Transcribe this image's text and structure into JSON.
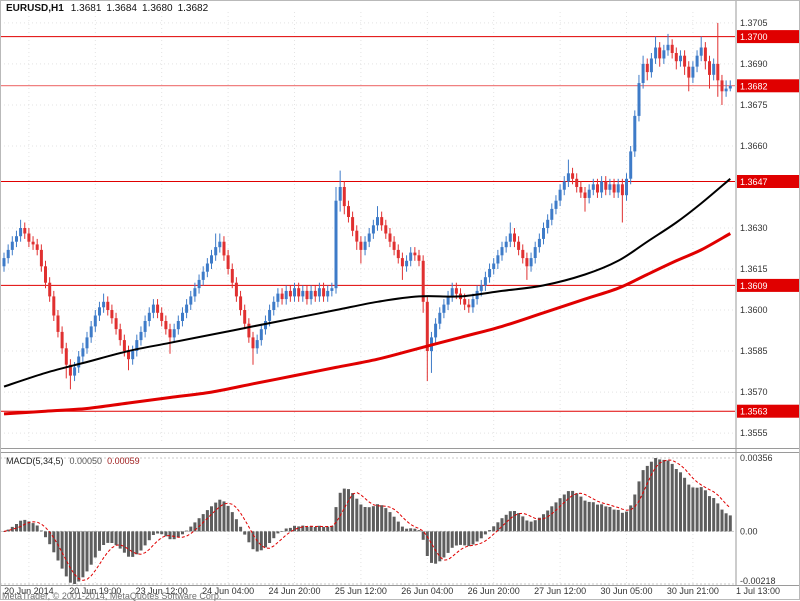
{
  "header": {
    "symbol_period": "EURUSD,H1",
    "open": "1.3681",
    "high": "1.3684",
    "low": "1.3680",
    "close": "1.3682"
  },
  "footer": {
    "copyright": "MetaTrader, © 2001-2014, MetaQuotes Software Corp."
  },
  "macd_panel": {
    "label": "MACD(5,34,5)",
    "value_main": "0.00050",
    "value_signal": "0.00059",
    "axis_max": "0.00356",
    "axis_zero": "0.00",
    "axis_min": "-0.00218"
  },
  "price_axis": {
    "ticks": [
      "1.3705",
      "1.3690",
      "1.3675",
      "1.3660",
      "1.3630",
      "1.3615",
      "1.3600",
      "1.3585",
      "1.3570",
      "1.3555"
    ],
    "levels": [
      "1.3700",
      "1.3647",
      "1.3609",
      "1.3563"
    ],
    "bid": "1.3682"
  },
  "time_axis": {
    "labels": [
      "20 Jun 2014",
      "20 Jun 19:00",
      "23 Jun 12:00",
      "24 Jun 04:00",
      "24 Jun 20:00",
      "25 Jun 12:00",
      "26 Jun 04:00",
      "26 Jun 20:00",
      "27 Jun 12:00",
      "30 Jun 05:00",
      "30 Jun 21:00",
      "1 Jul 13:00"
    ]
  },
  "colors": {
    "candle_up": "#3E7BC8",
    "candle_down": "#E03030",
    "ma_black": "#000000",
    "ma_red": "#E00000",
    "level_line": "#E00000",
    "label_box_bg": "#E00000",
    "label_box_text": "#FFFFFF",
    "macd_hist": "#5E5E5E",
    "macd_signal": "#E00000",
    "grid": "#E3E3E3",
    "frame": "#9A9A9A",
    "axis_text": "#333333"
  },
  "chart_data": {
    "type": "candlestick",
    "title": "EURUSD H1 with MACD(5,34,5)",
    "symbol": "EURUSD",
    "timeframe": "H1",
    "last_ohlc": [
      1.3681,
      1.3684,
      1.368,
      1.3682
    ],
    "price_axis_range": [
      1.3555,
      1.3705
    ],
    "horizontal_levels": [
      1.37,
      1.3647,
      1.3609,
      1.3563
    ],
    "current_bid": 1.3682,
    "x_label_candle_indices": [
      6,
      22,
      38,
      54,
      70,
      86,
      102,
      118,
      134,
      150,
      166,
      182
    ],
    "candles_ohlc_x10000": [
      [
        13616,
        13621,
        13614,
        13619
      ],
      [
        13619,
        13624,
        13617,
        13622
      ],
      [
        13622,
        13627,
        13620,
        13625
      ],
      [
        13625,
        13629,
        13623,
        13627
      ],
      [
        13627,
        13633,
        13625,
        13630
      ],
      [
        13630,
        13632,
        13626,
        13628
      ],
      [
        13628,
        13630,
        13623,
        13625
      ],
      [
        13625,
        13627,
        13622,
        13624
      ],
      [
        13624,
        13626,
        13620,
        13622
      ],
      [
        13622,
        13624,
        13614,
        13616
      ],
      [
        13616,
        13618,
        13608,
        13610
      ],
      [
        13610,
        13612,
        13603,
        13605
      ],
      [
        13605,
        13607,
        13596,
        13598
      ],
      [
        13598,
        13600,
        13590,
        13592
      ],
      [
        13592,
        13594,
        13584,
        13586
      ],
      [
        13586,
        13588,
        13575,
        13580
      ],
      [
        13580,
        13582,
        13571,
        13576
      ],
      [
        13576,
        13581,
        13574,
        13579
      ],
      [
        13579,
        13585,
        13577,
        13583
      ],
      [
        13583,
        13588,
        13581,
        13586
      ],
      [
        13586,
        13592,
        13584,
        13590
      ],
      [
        13590,
        13596,
        13588,
        13594
      ],
      [
        13594,
        13600,
        13592,
        13598
      ],
      [
        13598,
        13603,
        13596,
        13601
      ],
      [
        13601,
        13606,
        13599,
        13603
      ],
      [
        13603,
        13605,
        13598,
        13600
      ],
      [
        13600,
        13602,
        13595,
        13597
      ],
      [
        13597,
        13599,
        13591,
        13593
      ],
      [
        13593,
        13595,
        13587,
        13589
      ],
      [
        13589,
        13591,
        13583,
        13585
      ],
      [
        13585,
        13587,
        13578,
        13582
      ],
      [
        13582,
        13587,
        13580,
        13585
      ],
      [
        13585,
        13591,
        13583,
        13589
      ],
      [
        13589,
        13594,
        13587,
        13592
      ],
      [
        13592,
        13598,
        13590,
        13596
      ],
      [
        13596,
        13601,
        13594,
        13599
      ],
      [
        13599,
        13604,
        13597,
        13602
      ],
      [
        13602,
        13604,
        13597,
        13599
      ],
      [
        13599,
        13601,
        13594,
        13596
      ],
      [
        13596,
        13598,
        13591,
        13593
      ],
      [
        13593,
        13595,
        13584,
        13590
      ],
      [
        13590,
        13595,
        13588,
        13593
      ],
      [
        13593,
        13598,
        13591,
        13596
      ],
      [
        13596,
        13601,
        13594,
        13599
      ],
      [
        13599,
        13604,
        13597,
        13602
      ],
      [
        13602,
        13607,
        13600,
        13605
      ],
      [
        13605,
        13610,
        13603,
        13608
      ],
      [
        13608,
        13613,
        13606,
        13611
      ],
      [
        13611,
        13616,
        13609,
        13614
      ],
      [
        13614,
        13619,
        13612,
        13617
      ],
      [
        13617,
        13622,
        13615,
        13620
      ],
      [
        13620,
        13628,
        13618,
        13623
      ],
      [
        13623,
        13628,
        13621,
        13625
      ],
      [
        13625,
        13627,
        13618,
        13620
      ],
      [
        13620,
        13622,
        13613,
        13615
      ],
      [
        13615,
        13617,
        13608,
        13610
      ],
      [
        13610,
        13612,
        13603,
        13605
      ],
      [
        13605,
        13607,
        13598,
        13600
      ],
      [
        13600,
        13602,
        13593,
        13595
      ],
      [
        13595,
        13597,
        13588,
        13590
      ],
      [
        13590,
        13592,
        13580,
        13586
      ],
      [
        13586,
        13591,
        13584,
        13589
      ],
      [
        13589,
        13595,
        13587,
        13593
      ],
      [
        13593,
        13598,
        13591,
        13596
      ],
      [
        13596,
        13602,
        13594,
        13600
      ],
      [
        13600,
        13605,
        13598,
        13603
      ],
      [
        13603,
        13608,
        13601,
        13606
      ],
      [
        13606,
        13608,
        13602,
        13604
      ],
      [
        13604,
        13609,
        13602,
        13607
      ],
      [
        13607,
        13609,
        13603,
        13605
      ],
      [
        13605,
        13610,
        13603,
        13608
      ],
      [
        13608,
        13610,
        13603,
        13605
      ],
      [
        13605,
        13609,
        13603,
        13607
      ],
      [
        13607,
        13609,
        13602,
        13604
      ],
      [
        13604,
        13609,
        13602,
        13607
      ],
      [
        13607,
        13609,
        13603,
        13605
      ],
      [
        13605,
        13610,
        13603,
        13608
      ],
      [
        13608,
        13610,
        13603,
        13605
      ],
      [
        13605,
        13609,
        13603,
        13607
      ],
      [
        13607,
        13610,
        13605,
        13608
      ],
      [
        13608,
        13645,
        13606,
        13640
      ],
      [
        13640,
        13651,
        13636,
        13645
      ],
      [
        13645,
        13647,
        13635,
        13638
      ],
      [
        13638,
        13640,
        13632,
        13634
      ],
      [
        13634,
        13636,
        13627,
        13629
      ],
      [
        13629,
        13631,
        13622,
        13625
      ],
      [
        13625,
        13627,
        13617,
        13622
      ],
      [
        13622,
        13627,
        13620,
        13625
      ],
      [
        13625,
        13630,
        13623,
        13628
      ],
      [
        13628,
        13633,
        13626,
        13631
      ],
      [
        13631,
        13638,
        13629,
        13634
      ],
      [
        13634,
        13636,
        13629,
        13631
      ],
      [
        13631,
        13633,
        13626,
        13628
      ],
      [
        13628,
        13630,
        13623,
        13625
      ],
      [
        13625,
        13627,
        13620,
        13622
      ],
      [
        13622,
        13624,
        13617,
        13619
      ],
      [
        13619,
        13621,
        13611,
        13616
      ],
      [
        13616,
        13620,
        13614,
        13618
      ],
      [
        13618,
        13623,
        13616,
        13621
      ],
      [
        13621,
        13623,
        13618,
        13620
      ],
      [
        13620,
        13622,
        13616,
        13618
      ],
      [
        13618,
        13620,
        13599,
        13603
      ],
      [
        13603,
        13605,
        13574,
        13585
      ],
      [
        13585,
        13592,
        13577,
        13590
      ],
      [
        13590,
        13597,
        13588,
        13595
      ],
      [
        13595,
        13601,
        13593,
        13599
      ],
      [
        13599,
        13604,
        13597,
        13602
      ],
      [
        13602,
        13607,
        13600,
        13605
      ],
      [
        13605,
        13610,
        13603,
        13608
      ],
      [
        13608,
        13610,
        13604,
        13606
      ],
      [
        13606,
        13608,
        13602,
        13604
      ],
      [
        13604,
        13606,
        13600,
        13602
      ],
      [
        13602,
        13604,
        13599,
        13601
      ],
      [
        13601,
        13606,
        13599,
        13604
      ],
      [
        13604,
        13609,
        13602,
        13607
      ],
      [
        13607,
        13611,
        13605,
        13609
      ],
      [
        13609,
        13614,
        13607,
        13612
      ],
      [
        13612,
        13617,
        13610,
        13615
      ],
      [
        13615,
        13619,
        13613,
        13617
      ],
      [
        13617,
        13622,
        13615,
        13620
      ],
      [
        13620,
        13625,
        13618,
        13623
      ],
      [
        13623,
        13627,
        13621,
        13625
      ],
      [
        13625,
        13632,
        13623,
        13628
      ],
      [
        13628,
        13630,
        13623,
        13625
      ],
      [
        13625,
        13627,
        13620,
        13622
      ],
      [
        13622,
        13624,
        13617,
        13619
      ],
      [
        13619,
        13621,
        13611,
        13616
      ],
      [
        13616,
        13621,
        13614,
        13619
      ],
      [
        13619,
        13625,
        13617,
        13623
      ],
      [
        13623,
        13628,
        13621,
        13626
      ],
      [
        13626,
        13632,
        13624,
        13630
      ],
      [
        13630,
        13635,
        13628,
        13633
      ],
      [
        13633,
        13639,
        13631,
        13637
      ],
      [
        13637,
        13642,
        13635,
        13640
      ],
      [
        13640,
        13646,
        13638,
        13644
      ],
      [
        13644,
        13649,
        13642,
        13647
      ],
      [
        13647,
        13655,
        13645,
        13650
      ],
      [
        13650,
        13652,
        13646,
        13648
      ],
      [
        13648,
        13650,
        13643,
        13645
      ],
      [
        13645,
        13647,
        13641,
        13643
      ],
      [
        13643,
        13645,
        13636,
        13641
      ],
      [
        13641,
        13646,
        13639,
        13644
      ],
      [
        13644,
        13648,
        13642,
        13646
      ],
      [
        13646,
        13648,
        13641,
        13643
      ],
      [
        13643,
        13649,
        13641,
        13647
      ],
      [
        13647,
        13649,
        13642,
        13644
      ],
      [
        13644,
        13648,
        13642,
        13646
      ],
      [
        13646,
        13648,
        13641,
        13643
      ],
      [
        13643,
        13648,
        13641,
        13646
      ],
      [
        13646,
        13648,
        13632,
        13642
      ],
      [
        13642,
        13650,
        13640,
        13648
      ],
      [
        13648,
        13660,
        13646,
        13658
      ],
      [
        13658,
        13673,
        13656,
        13671
      ],
      [
        13671,
        13686,
        13669,
        13683
      ],
      [
        13683,
        13693,
        13681,
        13690
      ],
      [
        13690,
        13692,
        13684,
        13687
      ],
      [
        13687,
        13694,
        13685,
        13692
      ],
      [
        13692,
        13700,
        13690,
        13696
      ],
      [
        13696,
        13698,
        13689,
        13692
      ],
      [
        13692,
        13697,
        13690,
        13695
      ],
      [
        13695,
        13701,
        13693,
        13697
      ],
      [
        13697,
        13699,
        13692,
        13694
      ],
      [
        13694,
        13696,
        13688,
        13691
      ],
      [
        13691,
        13695,
        13689,
        13693
      ],
      [
        13693,
        13695,
        13686,
        13689
      ],
      [
        13689,
        13691,
        13680,
        13685
      ],
      [
        13685,
        13691,
        13683,
        13689
      ],
      [
        13689,
        13695,
        13687,
        13693
      ],
      [
        13693,
        13700,
        13691,
        13696
      ],
      [
        13696,
        13698,
        13688,
        13691
      ],
      [
        13691,
        13693,
        13681,
        13686
      ],
      [
        13686,
        13692,
        13684,
        13690
      ],
      [
        13690,
        13705,
        13678,
        13684
      ],
      [
        13684,
        13686,
        13675,
        13680
      ],
      [
        13680,
        13684,
        13678,
        13681
      ],
      [
        13681,
        13684,
        13680,
        13682
      ]
    ],
    "ma_black_points_x10000": [
      [
        0,
        13572
      ],
      [
        10,
        13577
      ],
      [
        20,
        13581
      ],
      [
        30,
        13585
      ],
      [
        40,
        13588
      ],
      [
        50,
        13591
      ],
      [
        60,
        13594
      ],
      [
        70,
        13597
      ],
      [
        80,
        13600
      ],
      [
        90,
        13603
      ],
      [
        100,
        13605
      ],
      [
        110,
        13605
      ],
      [
        120,
        13607
      ],
      [
        130,
        13609
      ],
      [
        140,
        13613
      ],
      [
        148,
        13618
      ],
      [
        155,
        13625
      ],
      [
        162,
        13632
      ],
      [
        168,
        13639
      ],
      [
        175,
        13648
      ]
    ],
    "ma_red_points_x10000": [
      [
        0,
        13562
      ],
      [
        10,
        13563
      ],
      [
        20,
        13564
      ],
      [
        30,
        13566
      ],
      [
        40,
        13568
      ],
      [
        50,
        13570
      ],
      [
        60,
        13573
      ],
      [
        70,
        13576
      ],
      [
        80,
        13579
      ],
      [
        90,
        13582
      ],
      [
        100,
        13586
      ],
      [
        110,
        13590
      ],
      [
        120,
        13594
      ],
      [
        130,
        13599
      ],
      [
        140,
        13604
      ],
      [
        148,
        13608
      ],
      [
        155,
        13613
      ],
      [
        162,
        13618
      ],
      [
        168,
        13622
      ],
      [
        175,
        13628
      ]
    ],
    "macd": {
      "params": [
        5,
        34,
        5
      ],
      "value_main": 0.0005,
      "value_signal": 0.00059,
      "axis_max": 0.00356,
      "axis_min": -0.00218
    }
  }
}
